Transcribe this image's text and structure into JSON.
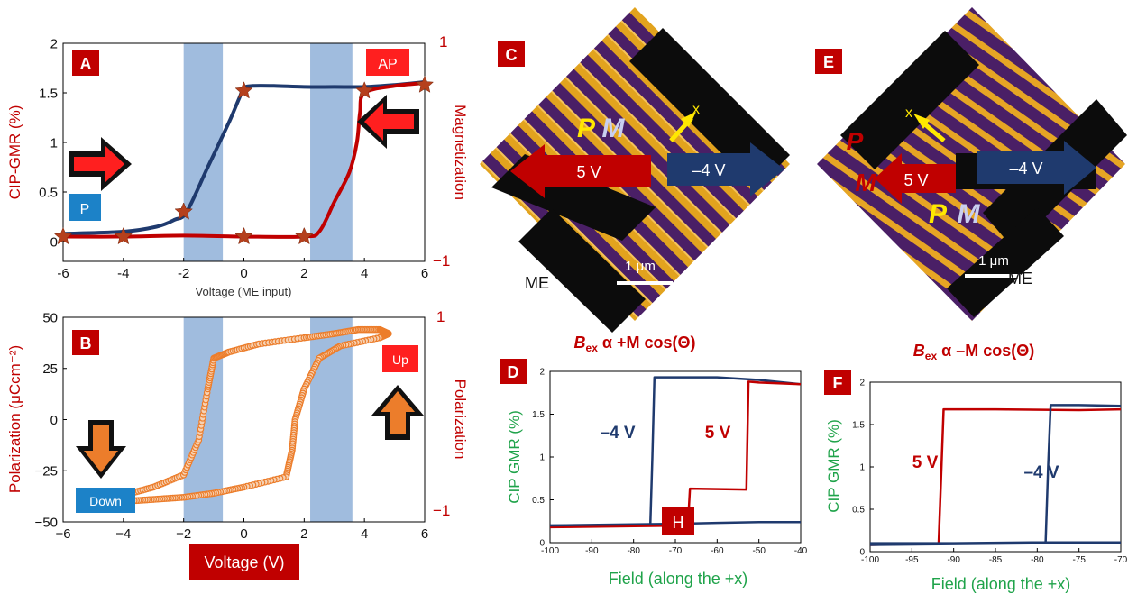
{
  "colors": {
    "red": "#c00000",
    "navy": "#1f3a6e",
    "green": "#1fa34a",
    "band": "#8fb0d8",
    "orange": "#ec7d2b",
    "star": "#b5401d",
    "panel_label_bg": "#c00000",
    "box_blue": "#1c82c8"
  },
  "panelA": {
    "letter": "A",
    "ylabel_left": "CIP-GMR (%)",
    "ylabel_right": "Magnetization",
    "xlabel": "Voltage (ME input)",
    "right_top": "1",
    "right_bottom": "−1",
    "box_AP": "AP",
    "box_P": "P"
  },
  "panelB": {
    "letter": "B",
    "ylabel_left": "Polarization (μCcm⁻²)",
    "ylabel_right": "Polarization",
    "right_top": "1",
    "right_bottom": "−1",
    "box_up": "Up",
    "box_down": "Down",
    "xlabel": "Voltage (V)"
  },
  "panelC": {
    "letter": "C",
    "P": "P",
    "M": "M",
    "arrow_left": "5 V",
    "arrow_right": "–4 V",
    "scale": "1 μm",
    "me": "ME",
    "x_mark": "x",
    "caption_b": "B",
    "caption_sub": "ex",
    "caption_rest": " α  +M cos(Θ)"
  },
  "panelE": {
    "letter": "E",
    "P1": "P",
    "M1": "M",
    "P2": "P",
    "M2": "M",
    "arrow_left": "5 V",
    "arrow_right": "–4 V",
    "scale": "1 μm",
    "me": "ME",
    "x_mark": "x",
    "caption_b": "B",
    "caption_sub": "ex",
    "caption_rest": " α –M cos(Θ)"
  },
  "panelD": {
    "letter": "D",
    "ylabel": "CIP GMR (%)",
    "xlabel": "Field (along the +x)",
    "label_neg4": "–4 V",
    "label_5": "5 V",
    "box_H": "H"
  },
  "panelF": {
    "letter": "F",
    "ylabel": "CIP GMR (%)",
    "xlabel": "Field (along the +x)",
    "label_5": "5 V",
    "label_neg4": "–4 V"
  },
  "chart_data": [
    {
      "id": "A",
      "type": "line",
      "xlabel": "Voltage (ME input)",
      "ylabel": "CIP-GMR (%)",
      "xlim": [
        -6,
        6
      ],
      "ylim": [
        -0.2,
        2
      ],
      "x_ticks": [
        "-6",
        "-4",
        "-2",
        "0",
        "2",
        "4",
        "6"
      ],
      "y_ticks": [
        "0",
        "0.5",
        "1",
        "1.5",
        "2"
      ],
      "bands": [
        [
          -2,
          -0.7
        ],
        [
          2.2,
          3.6
        ]
      ],
      "series": [
        {
          "color": "navy",
          "x": [
            -6,
            -4,
            -2.9,
            -2.3,
            -1.9,
            -1.2,
            -0.5,
            -0.15,
            0,
            0.3,
            1,
            2,
            3,
            4,
            5,
            6
          ],
          "y": [
            0.08,
            0.1,
            0.15,
            0.22,
            0.3,
            0.75,
            1.2,
            1.45,
            1.55,
            1.57,
            1.57,
            1.56,
            1.56,
            1.56,
            1.58,
            1.61
          ]
        },
        {
          "color": "red",
          "x": [
            -6,
            -4,
            -2,
            0,
            2,
            2.5,
            3,
            3.5,
            3.75,
            3.85,
            4,
            5,
            6
          ],
          "y": [
            0.05,
            0.05,
            0.06,
            0.05,
            0.05,
            0.1,
            0.4,
            0.7,
            1.0,
            1.3,
            1.5,
            1.57,
            1.6
          ]
        },
        {
          "name": "markers",
          "color": "star",
          "x": [
            -6,
            -4,
            -2,
            0,
            2,
            4,
            6,
            -2,
            0
          ],
          "y": [
            0.05,
            0.05,
            0.3,
            0.05,
            0.05,
            1.52,
            1.58,
            0.3,
            1.52
          ]
        }
      ]
    },
    {
      "id": "B",
      "type": "scatter",
      "xlabel": "Voltage (V)",
      "ylabel": "Polarization (μCcm⁻²)",
      "xlim": [
        -6,
        6
      ],
      "ylim": [
        -50,
        50
      ],
      "x_ticks": [
        "−6",
        "−4",
        "−2",
        "0",
        "2",
        "4",
        "6"
      ],
      "y_ticks": [
        "−50",
        "−25",
        "0",
        "25",
        "50"
      ],
      "bands": [
        [
          -2,
          -0.7
        ],
        [
          2.2,
          3.6
        ]
      ],
      "series": [
        {
          "color": "orange",
          "x": [
            -4,
            -3,
            -2,
            -1.5,
            -1.2,
            -1.0,
            -0.5,
            0.5,
            2,
            3,
            3.8,
            4.5,
            4.8
          ],
          "y": [
            -37,
            -33,
            -27,
            -10,
            15,
            30,
            33,
            37,
            40,
            42,
            44,
            44,
            42
          ]
        },
        {
          "color": "orange",
          "x": [
            4.8,
            4.5,
            3.2,
            2.5,
            2,
            1.7,
            1.6,
            1.4,
            0,
            -1,
            -2,
            -3,
            -4
          ],
          "y": [
            42,
            40,
            36,
            30,
            15,
            0,
            -15,
            -28,
            -33,
            -36,
            -38,
            -39,
            -40
          ]
        }
      ]
    },
    {
      "id": "D",
      "type": "line",
      "xlabel": "Field (along the +x)",
      "ylabel": "CIP GMR (%)",
      "xlim": [
        -100,
        -40
      ],
      "ylim": [
        0,
        2
      ],
      "x_ticks": [
        "-100",
        "-90",
        "-80",
        "-70",
        "-60",
        "-50",
        "-40"
      ],
      "y_ticks": [
        "0",
        "0.5",
        "1",
        "1.5",
        "2"
      ],
      "series": [
        {
          "color": "navy",
          "x": [
            -100,
            -76,
            -75.5,
            -75,
            -60,
            -50,
            -40
          ],
          "y": [
            0.2,
            0.2,
            1.0,
            1.93,
            1.93,
            1.9,
            1.85
          ]
        },
        {
          "color": "red",
          "x": [
            -100,
            -67,
            -66.5,
            -53,
            -52.5,
            -50,
            -40
          ],
          "y": [
            0.18,
            0.2,
            0.63,
            0.62,
            1.88,
            1.87,
            1.85
          ]
        },
        {
          "color": "navy",
          "x": [
            -100,
            -70,
            -60,
            -50,
            -40
          ],
          "y": [
            0.2,
            0.22,
            0.23,
            0.24,
            0.24
          ]
        }
      ]
    },
    {
      "id": "F",
      "type": "line",
      "xlabel": "Field (along the +x)",
      "ylabel": "CIP GMR (%)",
      "xlim": [
        -100,
        -70
      ],
      "ylim": [
        0,
        2
      ],
      "x_ticks": [
        "-100",
        "-95",
        "-90",
        "-85",
        "-80",
        "-75",
        "-70"
      ],
      "y_ticks": [
        "0",
        "0.5",
        "1",
        "1.5",
        "2"
      ],
      "series": [
        {
          "color": "red",
          "x": [
            -100,
            -91.8,
            -91.5,
            -91.2,
            -85,
            -75,
            -70
          ],
          "y": [
            0.08,
            0.1,
            0.9,
            1.68,
            1.68,
            1.67,
            1.68
          ]
        },
        {
          "color": "navy",
          "x": [
            -100,
            -79,
            -78.7,
            -78.4,
            -75,
            -70
          ],
          "y": [
            0.08,
            0.1,
            1.0,
            1.73,
            1.73,
            1.72
          ]
        },
        {
          "color": "navy",
          "x": [
            -100,
            -90,
            -80,
            -70
          ],
          "y": [
            0.1,
            0.1,
            0.11,
            0.11
          ]
        }
      ]
    }
  ]
}
